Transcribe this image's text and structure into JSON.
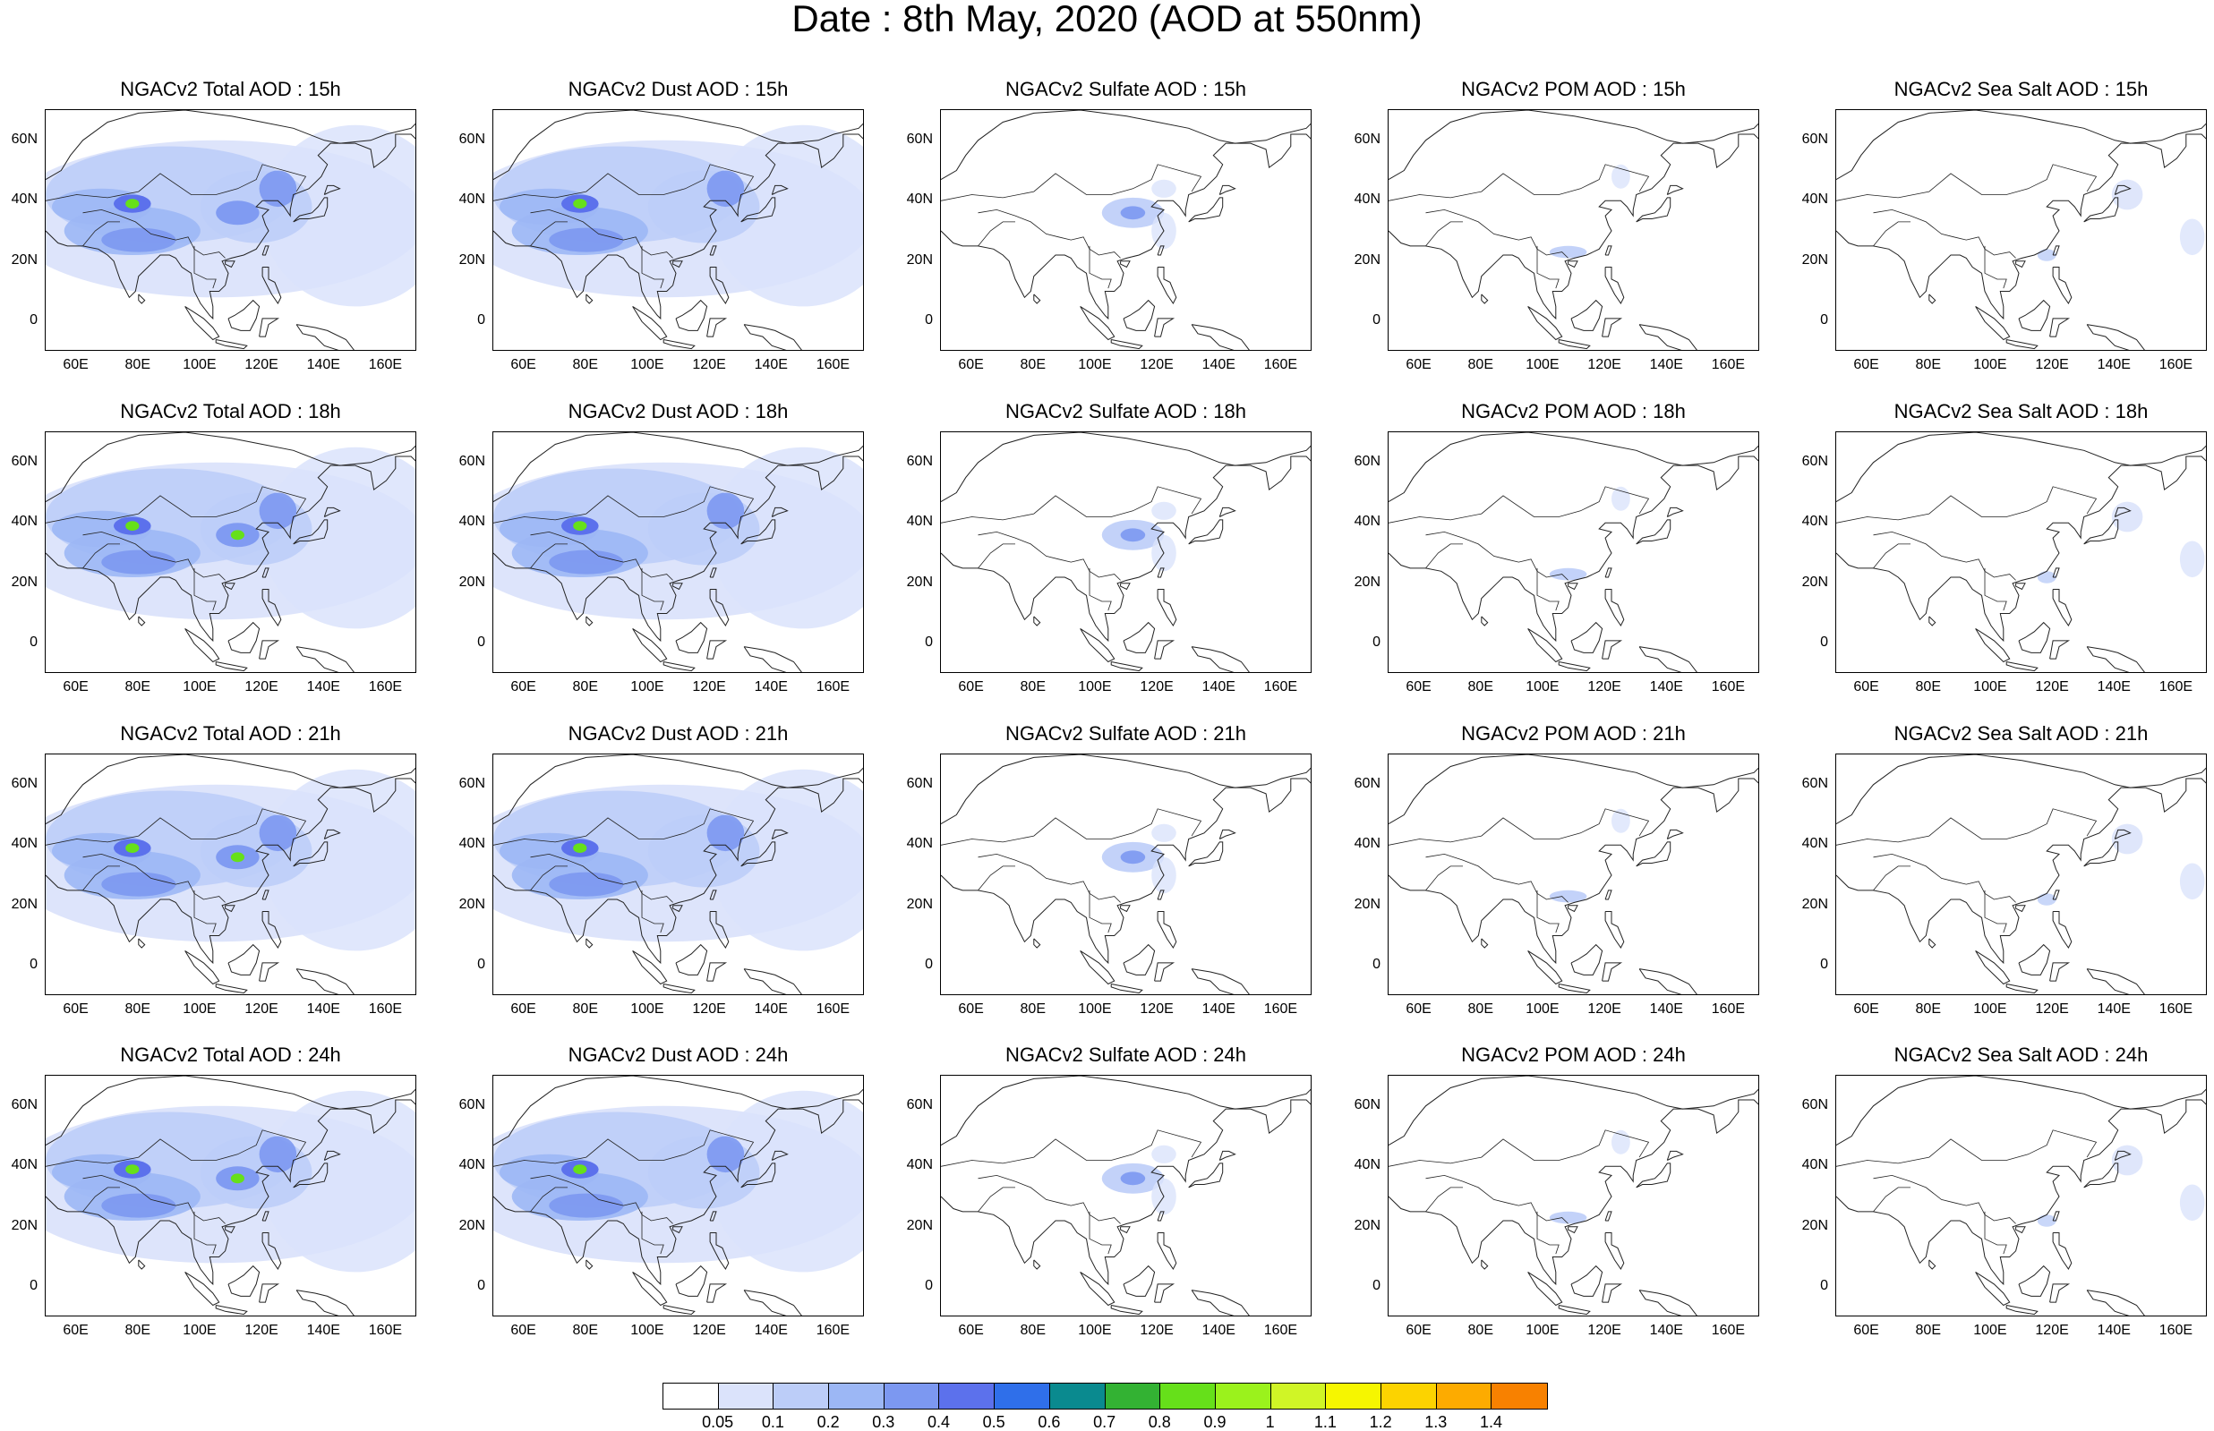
{
  "title": "Date : 8th May, 2020 (AOD at 550nm)",
  "grid": {
    "rows": [
      "15h",
      "18h",
      "21h",
      "24h"
    ],
    "columns": [
      "Total",
      "Dust",
      "Sulfate",
      "POM",
      "Sea Salt"
    ]
  },
  "panels": [
    {
      "title": "NGACv2 Total AOD : 15h",
      "species": "total",
      "hour": "15h"
    },
    {
      "title": "NGACv2 Dust AOD : 15h",
      "species": "dust",
      "hour": "15h"
    },
    {
      "title": "NGACv2 Sulfate AOD : 15h",
      "species": "sulfate",
      "hour": "15h"
    },
    {
      "title": "NGACv2 POM AOD : 15h",
      "species": "pom",
      "hour": "15h"
    },
    {
      "title": "NGACv2 Sea Salt AOD : 15h",
      "species": "seasalt",
      "hour": "15h"
    },
    {
      "title": "NGACv2 Total AOD : 18h",
      "species": "total",
      "hour": "18h"
    },
    {
      "title": "NGACv2 Dust AOD : 18h",
      "species": "dust",
      "hour": "18h"
    },
    {
      "title": "NGACv2 Sulfate AOD : 18h",
      "species": "sulfate",
      "hour": "18h"
    },
    {
      "title": "NGACv2 POM AOD : 18h",
      "species": "pom",
      "hour": "18h"
    },
    {
      "title": "NGACv2 Sea Salt AOD : 18h",
      "species": "seasalt",
      "hour": "18h"
    },
    {
      "title": "NGACv2 Total AOD : 21h",
      "species": "total",
      "hour": "21h"
    },
    {
      "title": "NGACv2 Dust AOD : 21h",
      "species": "dust",
      "hour": "21h"
    },
    {
      "title": "NGACv2 Sulfate AOD : 21h",
      "species": "sulfate",
      "hour": "21h"
    },
    {
      "title": "NGACv2 POM AOD : 21h",
      "species": "pom",
      "hour": "21h"
    },
    {
      "title": "NGACv2 Sea Salt AOD : 21h",
      "species": "seasalt",
      "hour": "21h"
    },
    {
      "title": "NGACv2 Total AOD : 24h",
      "species": "total",
      "hour": "24h"
    },
    {
      "title": "NGACv2 Dust AOD : 24h",
      "species": "dust",
      "hour": "24h"
    },
    {
      "title": "NGACv2 Sulfate AOD : 24h",
      "species": "sulfate",
      "hour": "24h"
    },
    {
      "title": "NGACv2 POM AOD : 24h",
      "species": "pom",
      "hour": "24h"
    },
    {
      "title": "NGACv2 Sea Salt  AOD : 24h",
      "species": "seasalt",
      "hour": "24h"
    }
  ],
  "axes": {
    "lon_range": [
      50,
      170
    ],
    "lat_range": [
      -10,
      70
    ],
    "x_tick_values": [
      60,
      80,
      100,
      120,
      140,
      160
    ],
    "x_tick_labels": [
      "60E",
      "80E",
      "100E",
      "120E",
      "140E",
      "160E"
    ],
    "y_tick_values": [
      60,
      40,
      20,
      0
    ],
    "y_tick_labels": [
      "60N",
      "40N",
      "20N",
      "0"
    ]
  },
  "colorbar": {
    "colors": [
      "#ffffff",
      "#dbe3fb",
      "#bccdf8",
      "#9cb7f5",
      "#7c98f1",
      "#5c71ec",
      "#2f6fea",
      "#0a8a8f",
      "#33b233",
      "#66e01a",
      "#9bf21c",
      "#d0f526",
      "#f6f600",
      "#fcd300",
      "#fdab00",
      "#f88100",
      "#f25000",
      "#ee2200"
    ],
    "labels": [
      "0.05",
      "0.1",
      "0.2",
      "0.3",
      "0.4",
      "0.5",
      "0.6",
      "0.7",
      "0.8",
      "0.9",
      "1",
      "1.1",
      "1.2",
      "1.3",
      "1.4"
    ]
  },
  "chart_data": {
    "type": "heatmap",
    "variable": "AOD at 550nm",
    "title": "Date : 8th May, 2020 (AOD at 550nm)",
    "hotspots": {
      "total": [
        {
          "lon": 78,
          "lat": 39,
          "aod": 0.8
        },
        {
          "lon": 112,
          "lat": 36,
          "aod": 0.8
        },
        {
          "lon": 125,
          "lat": 45,
          "aod": 0.6
        },
        {
          "lon": 80,
          "lat": 28,
          "aod": 0.5
        }
      ],
      "dust": [
        {
          "lon": 78,
          "lat": 39,
          "aod": 0.8
        },
        {
          "lon": 122,
          "lat": 45,
          "aod": 0.5
        },
        {
          "lon": 80,
          "lat": 28,
          "aod": 0.5
        }
      ],
      "sulfate": [
        {
          "lon": 112,
          "lat": 36,
          "aod": 0.4
        }
      ],
      "pom": [
        {
          "lon": 108,
          "lat": 23,
          "aod": 0.2
        }
      ],
      "seasalt": [
        {
          "lon": 143,
          "lat": 42,
          "aod": 0.2
        }
      ]
    }
  }
}
